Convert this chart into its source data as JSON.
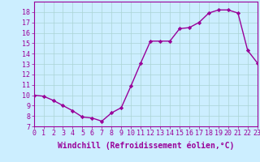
{
  "x": [
    0,
    1,
    2,
    3,
    4,
    5,
    6,
    7,
    8,
    9,
    10,
    11,
    12,
    13,
    14,
    15,
    16,
    17,
    18,
    19,
    20,
    21,
    22,
    23
  ],
  "y": [
    10.0,
    9.9,
    9.5,
    9.0,
    8.5,
    7.9,
    7.8,
    7.5,
    8.3,
    8.8,
    10.9,
    13.1,
    15.2,
    15.2,
    15.2,
    16.4,
    16.5,
    17.0,
    17.9,
    18.2,
    18.2,
    17.9,
    14.3,
    13.1
  ],
  "line_color": "#990099",
  "marker": "D",
  "marker_size": 2.2,
  "bg_color": "#cceeff",
  "grid_color": "#aad4d4",
  "xlabel": "Windchill (Refroidissement éolien,°C)",
  "xlim": [
    0,
    23
  ],
  "ylim": [
    7,
    19
  ],
  "yticks": [
    7,
    8,
    9,
    10,
    11,
    12,
    13,
    14,
    15,
    16,
    17,
    18
  ],
  "xticks": [
    0,
    1,
    2,
    3,
    4,
    5,
    6,
    7,
    8,
    9,
    10,
    11,
    12,
    13,
    14,
    15,
    16,
    17,
    18,
    19,
    20,
    21,
    22,
    23
  ],
  "xlabel_fontsize": 7,
  "tick_fontsize": 6,
  "line_width": 1.0
}
